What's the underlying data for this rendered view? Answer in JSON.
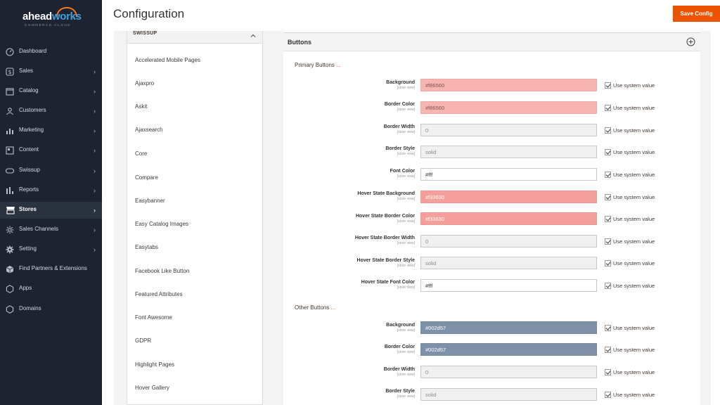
{
  "app": {
    "logo_text_a": "ahead",
    "logo_text_b": "works",
    "logo_subtext": "COMMERCE CLOUD",
    "page_title": "Configuration",
    "save_label": "Save Config"
  },
  "sidebar": {
    "items": [
      {
        "label": "Dashboard",
        "icon": "dashboard-icon",
        "chevron": false,
        "active": false
      },
      {
        "label": "Sales",
        "icon": "dollar-icon",
        "chevron": true,
        "active": false
      },
      {
        "label": "Catalog",
        "icon": "catalog-icon",
        "chevron": true,
        "active": false
      },
      {
        "label": "Customers",
        "icon": "customers-icon",
        "chevron": true,
        "active": false
      },
      {
        "label": "Marketing",
        "icon": "marketing-icon",
        "chevron": true,
        "active": false
      },
      {
        "label": "Content",
        "icon": "content-icon",
        "chevron": true,
        "active": false
      },
      {
        "label": "Swissup",
        "icon": "swissup-icon",
        "chevron": true,
        "active": false
      },
      {
        "label": "Reports",
        "icon": "reports-icon",
        "chevron": true,
        "active": false
      },
      {
        "label": "Stores",
        "icon": "stores-icon",
        "chevron": true,
        "active": true
      },
      {
        "label": "Sales Channels",
        "icon": "channels-icon",
        "chevron": true,
        "active": false
      },
      {
        "label": "Setting",
        "icon": "gear-icon",
        "chevron": true,
        "active": false
      },
      {
        "label": "Find Partners & Extensions",
        "icon": "box-icon",
        "chevron": false,
        "active": false
      },
      {
        "label": "Apps",
        "icon": "hexagon-icon",
        "chevron": false,
        "active": false
      },
      {
        "label": "Domains",
        "icon": "hexagon-icon",
        "chevron": false,
        "active": false
      }
    ]
  },
  "tabs": {
    "header": "SWISSUP",
    "items": [
      "Accelerated Mobile Pages",
      "Ajaxpro",
      "Askit",
      "Ajaxsearch",
      "Core",
      "Compare",
      "Easybanner",
      "Easy Catalog Images",
      "Easytabs",
      "Facebook Like Button",
      "Featured Attributes",
      "Font Awesome",
      "GDPR",
      "Highlight Pages",
      "Hover Gallery"
    ]
  },
  "section": {
    "title": "Buttons",
    "scope_text": "[store view]",
    "use_system_label": "Use system value",
    "groups": [
      {
        "title": "Primary Buttons",
        "dots": "...",
        "fields": [
          {
            "label": "Background",
            "value": "#f86560",
            "style": "pink"
          },
          {
            "label": "Border Color",
            "value": "#f86560",
            "style": "pink"
          },
          {
            "label": "Border Width",
            "value": "0",
            "style": "grey"
          },
          {
            "label": "Border Style",
            "value": "solid",
            "style": "grey"
          },
          {
            "label": "Font Color",
            "value": "#fff",
            "style": "white"
          },
          {
            "label": "Hover State Background",
            "value": "#f33630",
            "style": "salmon"
          },
          {
            "label": "Hover State Border Color",
            "value": "#f33630",
            "style": "salmon"
          },
          {
            "label": "Hover State Border Width",
            "value": "0",
            "style": "grey"
          },
          {
            "label": "Hover State Border Style",
            "value": "solid",
            "style": "grey"
          },
          {
            "label": "Hover State Font Color",
            "value": "#fff",
            "style": "white"
          }
        ]
      },
      {
        "title": "Other Buttons",
        "dots": "...",
        "fields": [
          {
            "label": "Background",
            "value": "#002d57",
            "style": "navy"
          },
          {
            "label": "Border Color",
            "value": "#002d57",
            "style": "navy"
          },
          {
            "label": "Border Width",
            "value": "0",
            "style": "grey"
          },
          {
            "label": "Border Style",
            "value": "solid",
            "style": "grey"
          }
        ]
      }
    ]
  },
  "colors": {
    "sidebar_bg": "#1d2330",
    "accent": "#eb5202",
    "primary_bg": "#f86560",
    "primary_hover": "#f33630",
    "other_bg": "#002d57"
  }
}
